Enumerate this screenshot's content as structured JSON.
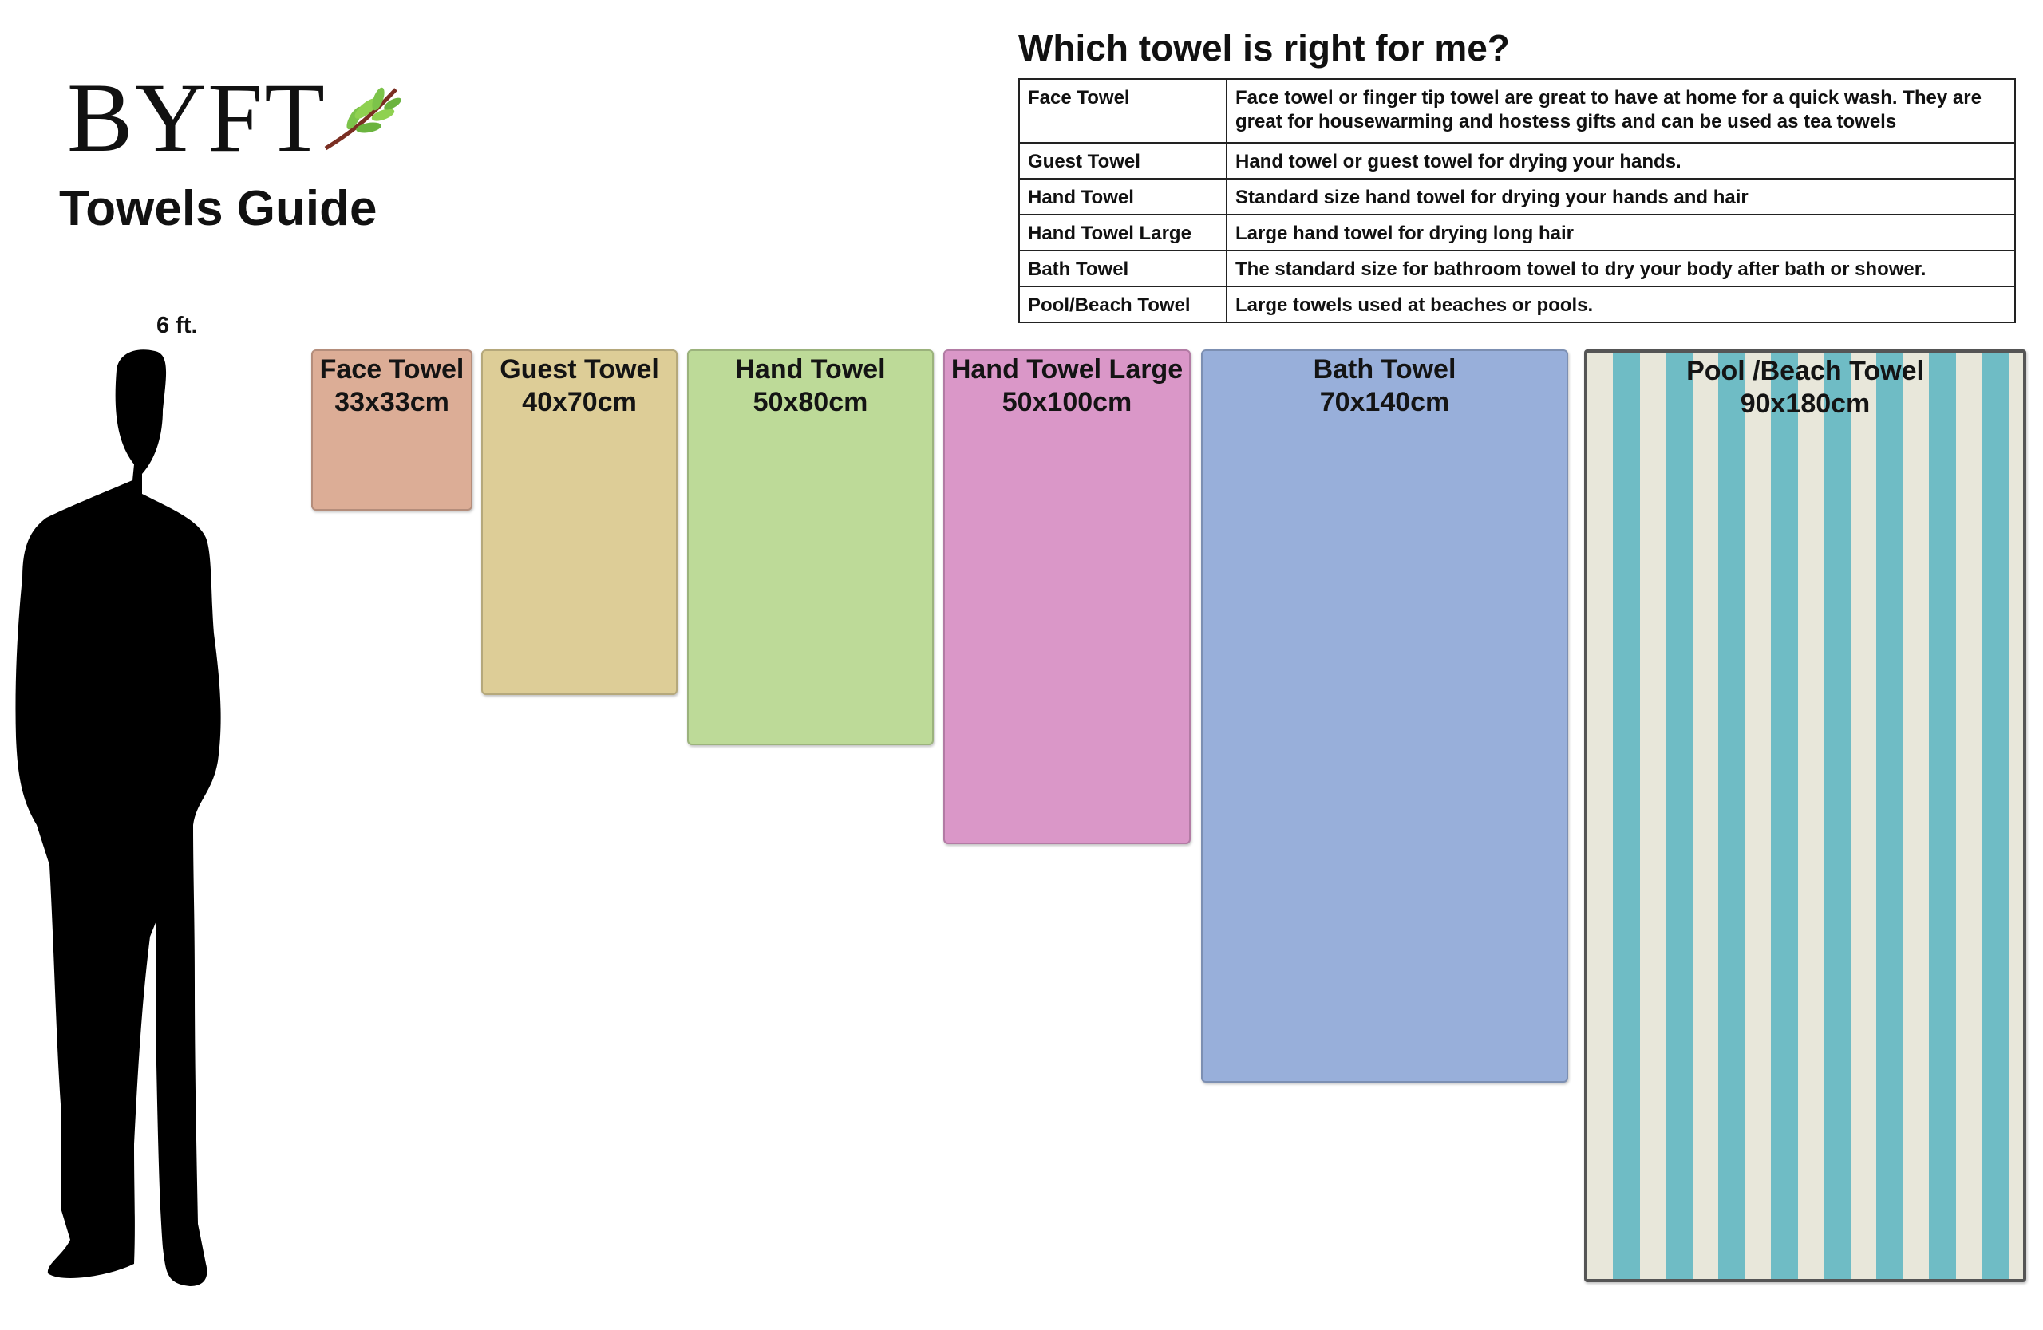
{
  "logo": {
    "text": "BYFT",
    "icon": "leaf-icon"
  },
  "guide_title": "Towels Guide",
  "height_label": "6 ft.",
  "table": {
    "title": "Which towel is right for me?",
    "rows": [
      {
        "name": "Face Towel",
        "description": "Face towel or finger tip towel are great to have at home for a quick wash. They are great for housewarming and hostess gifts and can be used as tea towels"
      },
      {
        "name": "Guest Towel",
        "description": "Hand towel or guest towel for drying your hands."
      },
      {
        "name": "Hand Towel",
        "description": "Standard size hand towel for drying your hands and hair"
      },
      {
        "name": "Hand Towel Large",
        "description": "Large hand towel for drying long hair"
      },
      {
        "name": "Bath Towel",
        "description": "The standard size for bathroom towel to dry your body after bath or shower."
      },
      {
        "name": "Pool/Beach Towel",
        "description": "Large towels used at beaches or pools."
      }
    ]
  },
  "towels": [
    {
      "name": "Face Towel",
      "size": "33x33cm",
      "color": "#dcad96"
    },
    {
      "name": "Guest Towel",
      "size": "40x70cm",
      "color": "#ddcd97"
    },
    {
      "name": "Hand Towel",
      "size": "50x80cm",
      "color": "#bdda98"
    },
    {
      "name": "Hand Towel Large",
      "size": "50x100cm",
      "color": "#da97c8"
    },
    {
      "name": "Bath Towel",
      "size": "70x140cm",
      "color": "#98afda"
    },
    {
      "name": "Pool /Beach Towel",
      "size": "90x180cm",
      "color": "#6fbcc5"
    }
  ]
}
